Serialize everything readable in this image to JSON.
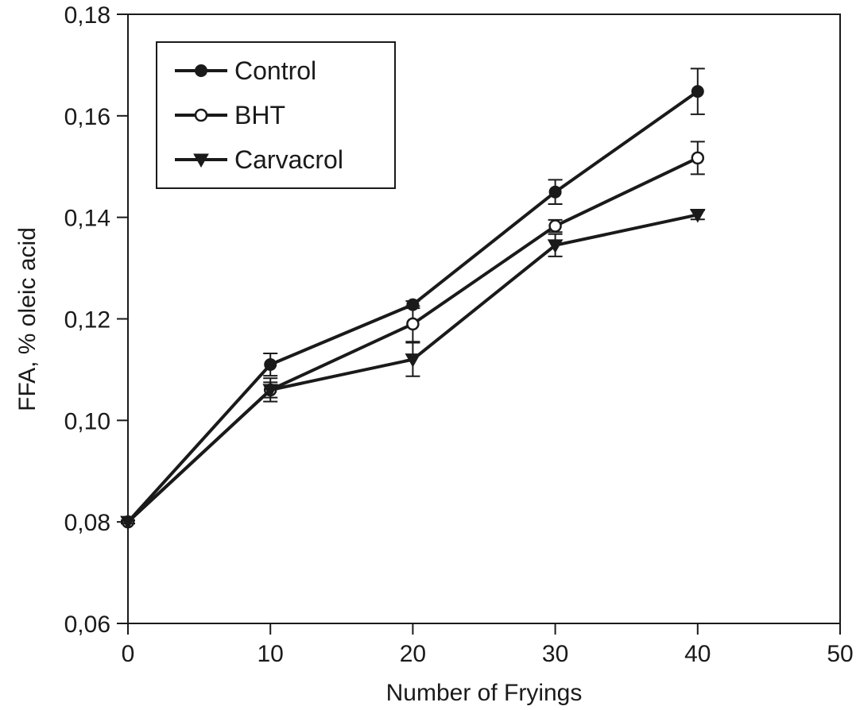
{
  "chart_data": {
    "type": "line",
    "title": "",
    "xlabel": "Number of Fryings",
    "ylabel": "FFA, % oleic acid",
    "xlim": [
      0,
      50
    ],
    "ylim": [
      0.06,
      0.18
    ],
    "xticks": [
      {
        "value": 0,
        "label": "0"
      },
      {
        "value": 10,
        "label": "10"
      },
      {
        "value": 20,
        "label": "20"
      },
      {
        "value": 30,
        "label": "30"
      },
      {
        "value": 40,
        "label": "40"
      },
      {
        "value": 50,
        "label": "50"
      }
    ],
    "yticks": [
      {
        "value": 0.06,
        "label": "0,06"
      },
      {
        "value": 0.08,
        "label": "0,08"
      },
      {
        "value": 0.1,
        "label": "0,10"
      },
      {
        "value": 0.12,
        "label": "0,12"
      },
      {
        "value": 0.14,
        "label": "0,14"
      },
      {
        "value": 0.16,
        "label": "0,16"
      },
      {
        "value": 0.18,
        "label": "0,18"
      }
    ],
    "grid": false,
    "legend_position": "top-left",
    "x": [
      0,
      10,
      20,
      30,
      40
    ],
    "series": [
      {
        "name": "Control",
        "marker": "filled-circle",
        "values": [
          0.08,
          0.111,
          0.1228,
          0.145,
          0.1648
        ],
        "errors": [
          0.0003,
          0.0022,
          0.0007,
          0.0024,
          0.0045
        ]
      },
      {
        "name": "BHT",
        "marker": "open-circle",
        "values": [
          0.08,
          0.106,
          0.119,
          0.1383,
          0.1517
        ],
        "errors": [
          0.0003,
          0.0023,
          0.0035,
          0.0012,
          0.0032
        ]
      },
      {
        "name": "Carvacrol",
        "marker": "filled-triangle-down",
        "values": [
          0.08,
          0.106,
          0.112,
          0.1345,
          0.1405
        ],
        "errors": [
          0.0003,
          0.0015,
          0.0033,
          0.0022,
          0.0009
        ]
      }
    ],
    "colors": {
      "line": "#1a1a1a",
      "background": "#ffffff"
    }
  }
}
